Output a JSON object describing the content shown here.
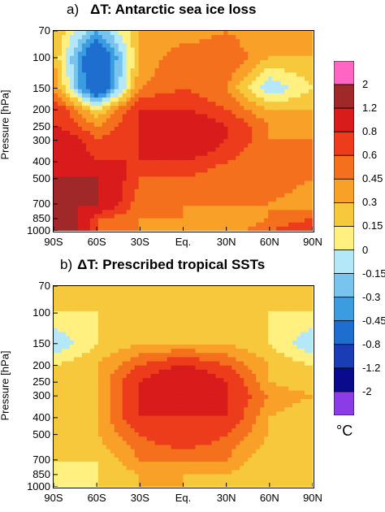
{
  "panel_a": {
    "label": "a)",
    "title": "ΔT: Antarctic sea ice loss",
    "ylabel": "Pressure [hPa]",
    "y_ticks": [
      "70",
      "100",
      "150",
      "200",
      "250",
      "300",
      "400",
      "500",
      "700",
      "850",
      "1000"
    ],
    "x_ticks": [
      "90S",
      "60S",
      "30S",
      "Eq.",
      "30N",
      "60N",
      "90N"
    ]
  },
  "panel_b": {
    "label": "b)",
    "title": "ΔT: Prescribed tropical SSTs",
    "ylabel": "Pressure [hPa]",
    "y_ticks": [
      "70",
      "100",
      "150",
      "200",
      "250",
      "300",
      "400",
      "500",
      "700",
      "850",
      "1000"
    ],
    "x_ticks": [
      "90S",
      "60S",
      "30S",
      "Eq.",
      "30N",
      "60N",
      "90N"
    ]
  },
  "colorbar": {
    "unit": "°C",
    "labels": [
      "2",
      "1.2",
      "0.8",
      "0.6",
      "0.45",
      "0.3",
      "0.15",
      "0",
      "-0.15",
      "-0.3",
      "-0.45",
      "-0.8",
      "-1.2",
      "-2"
    ],
    "colors": [
      "#ff66c4",
      "#a02828",
      "#d81b1b",
      "#ec3c1c",
      "#f4701c",
      "#f8a028",
      "#f8c83c",
      "#fff080",
      "#b4e8f8",
      "#78c4ee",
      "#3c9ce0",
      "#1e6ed0",
      "#1a3cb4",
      "#0a0a8c",
      "#8c3ce6"
    ]
  },
  "chart_data": [
    {
      "type": "heatmap",
      "title": "ΔT: Antarctic sea ice loss",
      "xlabel": "",
      "ylabel": "Pressure [hPa]",
      "x_categories": [
        "90S",
        "60S",
        "30S",
        "Eq.",
        "30N",
        "60N",
        "90N"
      ],
      "y_categories": [
        "70",
        "100",
        "150",
        "200",
        "250",
        "300",
        "400",
        "500",
        "700",
        "850",
        "1000"
      ],
      "y_scale": "log-pressure",
      "unit": "°C",
      "values": [
        [
          0.3,
          -0.3,
          0.3,
          0.3,
          0.45,
          0.3,
          0.3
        ],
        [
          0.3,
          -0.8,
          0.3,
          0.6,
          0.6,
          0.3,
          0.3
        ],
        [
          0.45,
          -0.8,
          0.45,
          0.6,
          0.45,
          -0.15,
          0.15
        ],
        [
          0.8,
          0.15,
          0.8,
          0.8,
          0.6,
          0.3,
          0.3
        ],
        [
          0.8,
          0.45,
          0.8,
          1.2,
          0.8,
          0.45,
          0.3
        ],
        [
          1.2,
          0.6,
          0.8,
          1.2,
          0.8,
          0.45,
          0.45
        ],
        [
          1.2,
          0.8,
          0.8,
          0.8,
          0.6,
          0.45,
          0.6
        ],
        [
          1.2,
          1.2,
          0.6,
          0.6,
          0.45,
          0.6,
          0.45
        ],
        [
          1.2,
          1.2,
          0.45,
          0.45,
          0.45,
          0.45,
          0.3
        ],
        [
          2,
          0.6,
          0.45,
          0.45,
          0.3,
          0.45,
          0.6
        ],
        [
          2,
          0.6,
          0.45,
          0.3,
          0.3,
          0.6,
          0.8
        ]
      ]
    },
    {
      "type": "heatmap",
      "title": "ΔT: Prescribed tropical SSTs",
      "xlabel": "",
      "ylabel": "Pressure [hPa]",
      "x_categories": [
        "90S",
        "60S",
        "30S",
        "Eq.",
        "30N",
        "60N",
        "90N"
      ],
      "y_categories": [
        "70",
        "100",
        "150",
        "200",
        "250",
        "300",
        "400",
        "500",
        "700",
        "850",
        "1000"
      ],
      "y_scale": "log-pressure",
      "unit": "°C",
      "values": [
        [
          0.15,
          0.3,
          0.15,
          0.15,
          0.15,
          0.3,
          0.15
        ],
        [
          0.15,
          0.15,
          0.15,
          0.15,
          0.15,
          0.15,
          0.15
        ],
        [
          -0.15,
          0.15,
          0.3,
          0.3,
          0.3,
          0.15,
          -0.15
        ],
        [
          0.15,
          0.3,
          0.6,
          0.8,
          0.6,
          0.3,
          0.15
        ],
        [
          0.15,
          0.3,
          0.8,
          1.2,
          0.8,
          0.3,
          0.15
        ],
        [
          0.15,
          0.3,
          0.8,
          1.2,
          0.8,
          0.45,
          0.3
        ],
        [
          0.15,
          0.3,
          0.8,
          0.8,
          0.8,
          0.3,
          0.15
        ],
        [
          0.15,
          0.3,
          0.6,
          0.8,
          0.6,
          0.3,
          0.15
        ],
        [
          0.15,
          0.15,
          0.45,
          0.45,
          0.45,
          0.15,
          0.15
        ],
        [
          0,
          0.15,
          0.3,
          0.3,
          0.3,
          0.15,
          0.15
        ],
        [
          0,
          0.15,
          0.3,
          0.3,
          0.15,
          0.15,
          0.15
        ]
      ]
    }
  ]
}
